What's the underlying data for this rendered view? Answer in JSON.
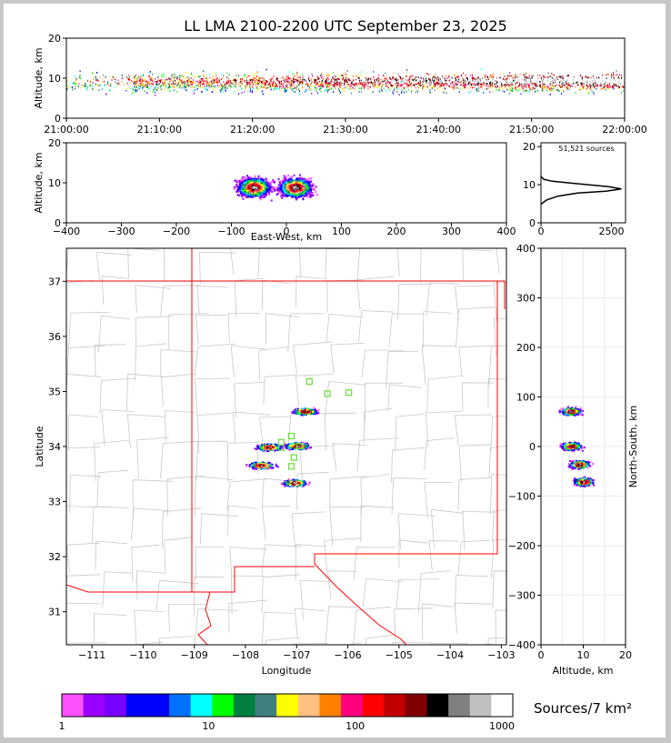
{
  "title": "LL LMA 2100-2200 UTC September 23, 2025",
  "time_panel": {
    "ylabel": "Altitude, km",
    "yticks": [
      "0",
      "10",
      "20"
    ],
    "xticks": [
      "21:00:00",
      "21:10:00",
      "21:20:00",
      "21:30:00",
      "21:40:00",
      "21:50:00",
      "22:00:00"
    ]
  },
  "ew_panel": {
    "ylabel": "Altitude, km",
    "xlabel": "East-West, km",
    "xticks": [
      "−400",
      "−300",
      "−200",
      "−100",
      "0",
      "100",
      "200",
      "300",
      "400"
    ],
    "yticks": [
      "0",
      "10",
      "20"
    ]
  },
  "hist_panel": {
    "label": "51,521 sources",
    "xticks": [
      "0",
      "2500"
    ],
    "yticks": [
      "0",
      "10",
      "20"
    ]
  },
  "map_panel": {
    "ylabel": "Latitude",
    "xlabel": "Longitude",
    "yticks": [
      "31",
      "32",
      "33",
      "34",
      "35",
      "36",
      "37"
    ],
    "xticks": [
      "−111",
      "−110",
      "−109",
      "−108",
      "−107",
      "−106",
      "−105",
      "−104",
      "−103"
    ]
  },
  "ns_panel": {
    "xlabel": "Altitude, km",
    "ylabel": "North-South, km",
    "yticks": [
      "400",
      "300",
      "200",
      "100",
      "0",
      "−100",
      "−200",
      "−300",
      "−400"
    ],
    "xticks": [
      "0",
      "10",
      "20"
    ]
  },
  "colorbar": {
    "label": "Sources/7 km²",
    "ticks": [
      "1",
      "10",
      "100",
      "1000"
    ],
    "colors": [
      "#ff50ff",
      "#9a00ff",
      "#7800ff",
      "#0000ff",
      "#0000ff",
      "#0070ff",
      "#00ffff",
      "#00ff00",
      "#008040",
      "#408080",
      "#ffff00",
      "#ffc080",
      "#ff8000",
      "#ff0080",
      "#ff0000",
      "#c00000",
      "#800000",
      "#000000",
      "#808080",
      "#c0c0c0",
      "#ffffff"
    ]
  },
  "chart_data": [
    {
      "type": "scatter",
      "name": "time-altitude",
      "x_range": [
        "21:00:00",
        "22:00:00"
      ],
      "ylim": [
        0,
        20
      ],
      "ylabel": "Altitude, km",
      "density_band_km": [
        6,
        11
      ],
      "peak_altitude_km": 9
    },
    {
      "type": "heatmap",
      "name": "east-west-altitude",
      "xlim": [
        -400,
        400
      ],
      "ylim": [
        0,
        20
      ],
      "xlabel": "East-West, km",
      "ylabel": "Altitude, km",
      "clusters": [
        {
          "x": -60,
          "alt": 9
        },
        {
          "x": 15,
          "alt": 9
        }
      ]
    },
    {
      "type": "line",
      "name": "altitude-histogram",
      "xlim": [
        0,
        3000
      ],
      "ylim": [
        0,
        21
      ],
      "total_sources": 51521,
      "points": [
        [
          0,
          4.9
        ],
        [
          200,
          6.0
        ],
        [
          600,
          7.0
        ],
        [
          1300,
          7.8
        ],
        [
          2300,
          8.3
        ],
        [
          2850,
          8.9
        ],
        [
          2400,
          9.5
        ],
        [
          1200,
          10.3
        ],
        [
          400,
          10.9
        ],
        [
          100,
          11.4
        ],
        [
          20,
          12.0
        ],
        [
          0,
          12.3
        ]
      ]
    },
    {
      "type": "heatmap",
      "name": "plan-view",
      "xlim": [
        -111.5,
        -102.9
      ],
      "ylim": [
        30.4,
        37.6
      ],
      "xlabel": "Longitude",
      "ylabel": "Latitude",
      "clusters": [
        {
          "lon": -106.85,
          "lat": 34.65
        },
        {
          "lon": -107.55,
          "lat": 34.0
        },
        {
          "lon": -107.0,
          "lat": 34.02
        },
        {
          "lon": -107.7,
          "lat": 33.67
        },
        {
          "lon": -107.05,
          "lat": 33.35
        }
      ],
      "stations": [
        {
          "lon": -106.75,
          "lat": 35.18
        },
        {
          "lon": -106.4,
          "lat": 34.96
        },
        {
          "lon": -105.98,
          "lat": 34.98
        },
        {
          "lon": -107.1,
          "lat": 34.19
        },
        {
          "lon": -107.3,
          "lat": 34.08
        },
        {
          "lon": -106.95,
          "lat": 34.01
        },
        {
          "lon": -107.3,
          "lat": 33.98
        },
        {
          "lon": -107.05,
          "lat": 33.8
        },
        {
          "lon": -107.1,
          "lat": 33.64
        }
      ]
    },
    {
      "type": "heatmap",
      "name": "north-south-altitude",
      "xlim": [
        0,
        20
      ],
      "ylim": [
        -400,
        400
      ],
      "xlabel": "Altitude, km",
      "ylabel": "North-South, km",
      "clusters": [
        {
          "alt": 7,
          "y": 72
        },
        {
          "alt": 7,
          "y": 2
        },
        {
          "alt": 9,
          "y": -35
        },
        {
          "alt": 10,
          "y": -70
        }
      ]
    }
  ]
}
